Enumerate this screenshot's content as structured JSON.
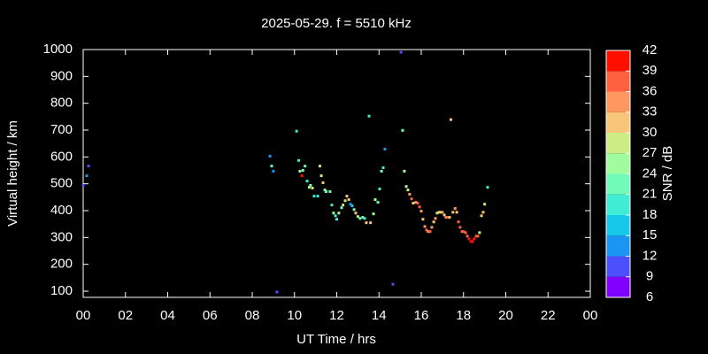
{
  "chart_data": {
    "type": "scatter",
    "title": "2025-05-29. f = 5510 kHz",
    "xlabel": "UT Time / hrs",
    "ylabel": "Virtual height / km",
    "xlim": [
      0,
      24
    ],
    "xticks": [
      {
        "value": 0,
        "label": "00"
      },
      {
        "value": 2,
        "label": "02"
      },
      {
        "value": 4,
        "label": "04"
      },
      {
        "value": 6,
        "label": "06"
      },
      {
        "value": 8,
        "label": "08"
      },
      10,
      12,
      14,
      16,
      18,
      20,
      22,
      {
        "value": 24,
        "label": "00"
      }
    ],
    "ylim": [
      77,
      1000
    ],
    "yticks": [
      100,
      200,
      300,
      400,
      500,
      600,
      700,
      800,
      900,
      1000
    ],
    "colorbar": {
      "label": "SNR / dB",
      "lim": [
        6,
        42
      ],
      "ticks": [
        6,
        9,
        12,
        15,
        18,
        21,
        24,
        27,
        30,
        33,
        36,
        39,
        42
      ],
      "colors": [
        "#8000ff",
        "#4c50fc",
        "#1a96f2",
        "#18c8e8",
        "#40ecd4",
        "#70fcb8",
        "#a0fc9c",
        "#ccec86",
        "#f8c678",
        "#ff9860",
        "#ff6040",
        "#ff1000"
      ]
    },
    "x": [
      0.0,
      0.17,
      0.25,
      8.84,
      8.92,
      9.0,
      9.17,
      10.1,
      10.2,
      10.26,
      10.35,
      10.4,
      10.5,
      10.6,
      10.7,
      10.76,
      10.85,
      10.93,
      11.1,
      11.2,
      11.27,
      11.35,
      11.44,
      11.5,
      11.68,
      11.77,
      11.85,
      11.94,
      12.0,
      12.1,
      12.23,
      12.3,
      12.4,
      12.48,
      12.57,
      12.65,
      12.73,
      12.82,
      12.9,
      13.0,
      13.1,
      13.23,
      13.32,
      13.4,
      13.53,
      13.6,
      13.74,
      13.82,
      13.95,
      14.03,
      14.12,
      14.2,
      14.28,
      14.66,
      15.04,
      15.12,
      15.2,
      15.29,
      15.37,
      15.45,
      15.54,
      15.62,
      15.75,
      15.83,
      15.92,
      16.0,
      16.08,
      16.17,
      16.25,
      16.33,
      16.42,
      16.5,
      16.59,
      16.67,
      16.75,
      16.84,
      16.92,
      17.0,
      17.09,
      17.17,
      17.26,
      17.34,
      17.4,
      17.5,
      17.6,
      17.68,
      17.76,
      17.84,
      17.93,
      18.0,
      18.1,
      18.18,
      18.26,
      18.35,
      18.43,
      18.5,
      18.6,
      18.68,
      18.76,
      18.85,
      18.93,
      19.0,
      19.14
    ],
    "values": [
      494,
      530,
      566,
      603,
      566,
      547,
      97,
      696,
      587,
      547,
      530,
      550,
      566,
      510,
      487,
      494,
      484,
      454,
      454,
      566,
      530,
      504,
      477,
      471,
      471,
      421,
      391,
      381,
      368,
      391,
      411,
      421,
      437,
      454,
      441,
      424,
      418,
      404,
      391,
      378,
      371,
      375,
      371,
      355,
      752,
      355,
      388,
      441,
      431,
      481,
      547,
      560,
      629,
      126,
      990,
      699,
      547,
      490,
      477,
      461,
      444,
      428,
      431,
      428,
      414,
      398,
      368,
      341,
      328,
      322,
      322,
      338,
      358,
      371,
      391,
      394,
      394,
      394,
      384,
      375,
      375,
      375,
      739,
      394,
      408,
      394,
      358,
      338,
      322,
      322,
      318,
      305,
      295,
      285,
      285,
      295,
      305,
      305,
      318,
      381,
      394,
      424,
      487
    ],
    "snr": [
      10,
      12,
      10,
      12,
      21,
      13,
      11,
      20,
      19,
      24,
      39,
      23,
      21,
      19,
      29,
      23,
      27,
      18,
      19,
      27,
      28,
      30,
      24,
      22,
      21,
      20,
      24,
      20,
      19,
      25,
      22,
      27,
      29,
      30,
      31,
      13,
      16,
      21,
      30,
      27,
      22,
      21,
      20,
      31,
      20,
      30,
      25,
      24,
      22,
      18,
      21,
      20,
      12,
      11,
      10,
      23,
      26,
      25,
      27,
      33,
      36,
      30,
      34,
      38,
      36,
      34,
      31,
      33,
      36,
      35,
      38,
      33,
      31,
      35,
      27,
      30,
      28,
      34,
      31,
      33,
      37,
      30,
      31,
      30,
      35,
      31,
      37,
      36,
      38,
      37,
      37,
      38,
      39,
      40,
      39,
      41,
      38,
      37,
      28,
      31,
      30,
      27,
      18
    ]
  }
}
